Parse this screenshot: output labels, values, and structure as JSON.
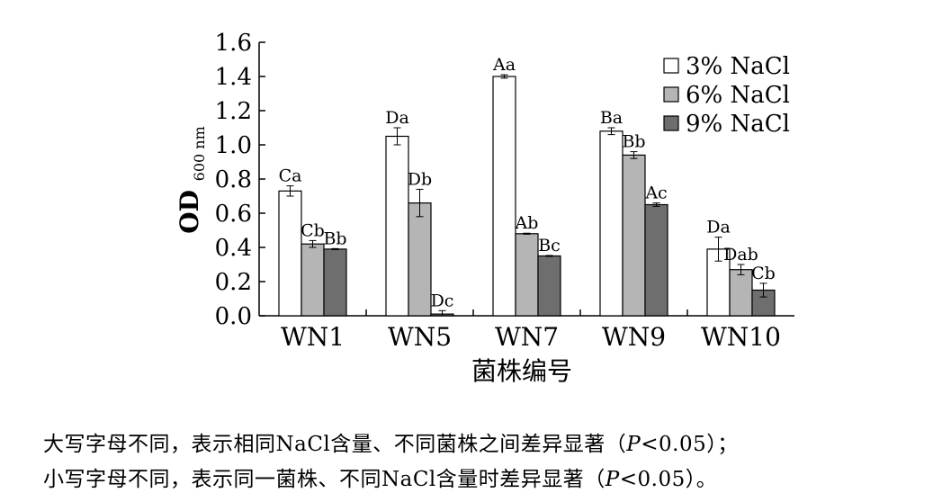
{
  "chart_data": {
    "type": "bar",
    "categories": [
      "WN1",
      "WN5",
      "WN7",
      "WN9",
      "WN10"
    ],
    "series": [
      {
        "name": "3% NaCl",
        "color": "#ffffff",
        "values": [
          0.73,
          1.05,
          1.4,
          1.08,
          0.39
        ],
        "errors": [
          0.03,
          0.05,
          0.01,
          0.02,
          0.07
        ],
        "labels": [
          "Ca",
          "Da",
          "Aa",
          "Ba",
          "Da"
        ]
      },
      {
        "name": "6% NaCl",
        "color": "#b5b5b5",
        "values": [
          0.42,
          0.66,
          0.48,
          0.94,
          0.27
        ],
        "errors": [
          0.02,
          0.08,
          0.003,
          0.02,
          0.03
        ],
        "labels": [
          "Cb",
          "Db",
          "Ab",
          "Bb",
          "Dab"
        ]
      },
      {
        "name": "9% NaCl",
        "color": "#6e6e6e",
        "values": [
          0.39,
          0.01,
          0.35,
          0.65,
          0.15
        ],
        "errors": [
          0.003,
          0.02,
          0.003,
          0.01,
          0.04
        ],
        "labels": [
          "Bb",
          "Dc",
          "Bc",
          "Ac",
          "Cb"
        ]
      }
    ],
    "xlabel": "菌株编号",
    "ylabel": "OD",
    "ylabel_sub": "600 nm",
    "ylim": [
      0,
      1.6
    ],
    "yticks": [
      "0.0",
      "0.2",
      "0.4",
      "0.6",
      "0.8",
      "1.0",
      "1.2",
      "1.4",
      "1.6"
    ],
    "legend_position": "top-right",
    "grid": false
  },
  "notes": {
    "line1_a": "大写字母不同，表示相同NaCl含量、不同菌株之间差异显著（",
    "line1_p": "P",
    "line1_b": "<0.05）；",
    "line2_a": "小写字母不同，表示同一菌株、不同NaCl含量时差异显著（",
    "line2_p": "P",
    "line2_b": "<0.05）。"
  }
}
